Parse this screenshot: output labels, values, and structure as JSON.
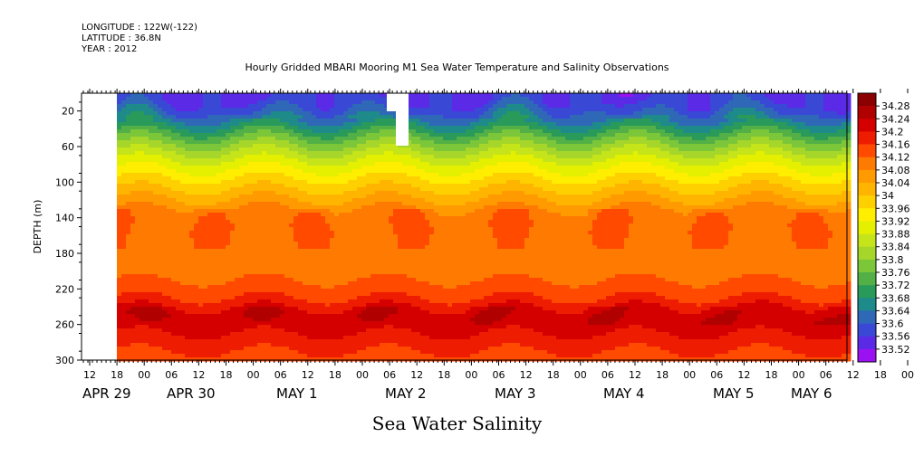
{
  "header": {
    "longitude": "LONGITUDE : 122W(-122)",
    "latitude": "LATITUDE : 36.8N",
    "year": "YEAR : 2012"
  },
  "chart_data": {
    "type": "heatmap",
    "title": "Hourly Gridded MBARI Mooring M1 Sea Water Temperature and Salinity Observations",
    "xlabel": "Sea Water Salinity",
    "ylabel": "DEPTH (m)",
    "y_axis": {
      "range": [
        300,
        0
      ],
      "ticks": [
        20,
        60,
        100,
        140,
        180,
        220,
        260,
        300
      ],
      "inverted": true
    },
    "x_axis": {
      "hour_ticks": [
        "12",
        "18",
        "00",
        "06",
        "12",
        "18",
        "00",
        "06",
        "12",
        "18",
        "00",
        "06",
        "12",
        "18",
        "00",
        "06",
        "12",
        "18",
        "00",
        "06",
        "12",
        "18",
        "00",
        "06",
        "12",
        "18",
        "00",
        "06",
        "12",
        "18",
        "00",
        "06"
      ],
      "day_labels": [
        "APR 29",
        "APR 30",
        "MAY  1",
        "MAY  2",
        "MAY  3",
        "MAY  4",
        "MAY  5",
        "MAY  6"
      ]
    },
    "colorbar": {
      "levels": [
        34.28,
        34.24,
        34.2,
        34.16,
        34.12,
        34.08,
        34.04,
        34,
        33.96,
        33.92,
        33.88,
        33.84,
        33.8,
        33.76,
        33.72,
        33.68,
        33.64,
        33.6,
        33.56,
        33.52
      ],
      "colors": [
        "#8b0000",
        "#b00000",
        "#d40000",
        "#ee1c00",
        "#ff4a00",
        "#ff7a00",
        "#ff9a00",
        "#ffb400",
        "#ffd000",
        "#ffee00",
        "#e4f000",
        "#c6e41a",
        "#a6d62a",
        "#7cc63a",
        "#52b046",
        "#2a9a5a",
        "#1f8a8a",
        "#2e68b6",
        "#3a48d6",
        "#5a2ae6",
        "#9a12f2"
      ]
    },
    "depth_profile": [
      {
        "depth": 10,
        "salinity": 33.6
      },
      {
        "depth": 30,
        "salinity": 33.68
      },
      {
        "depth": 50,
        "salinity": 33.8
      },
      {
        "depth": 70,
        "salinity": 33.9
      },
      {
        "depth": 90,
        "salinity": 33.98
      },
      {
        "depth": 110,
        "salinity": 34.05
      },
      {
        "depth": 130,
        "salinity": 34.12
      },
      {
        "depth": 150,
        "salinity": 34.15
      },
      {
        "depth": 170,
        "salinity": 34.13
      },
      {
        "depth": 190,
        "salinity": 34.12
      },
      {
        "depth": 210,
        "salinity": 34.16
      },
      {
        "depth": 230,
        "salinity": 34.2
      },
      {
        "depth": 250,
        "salinity": 34.27
      },
      {
        "depth": 270,
        "salinity": 34.24
      },
      {
        "depth": 290,
        "salinity": 34.2
      },
      {
        "depth": 300,
        "salinity": 34.18
      }
    ],
    "grid": false,
    "legend_position": "right"
  }
}
